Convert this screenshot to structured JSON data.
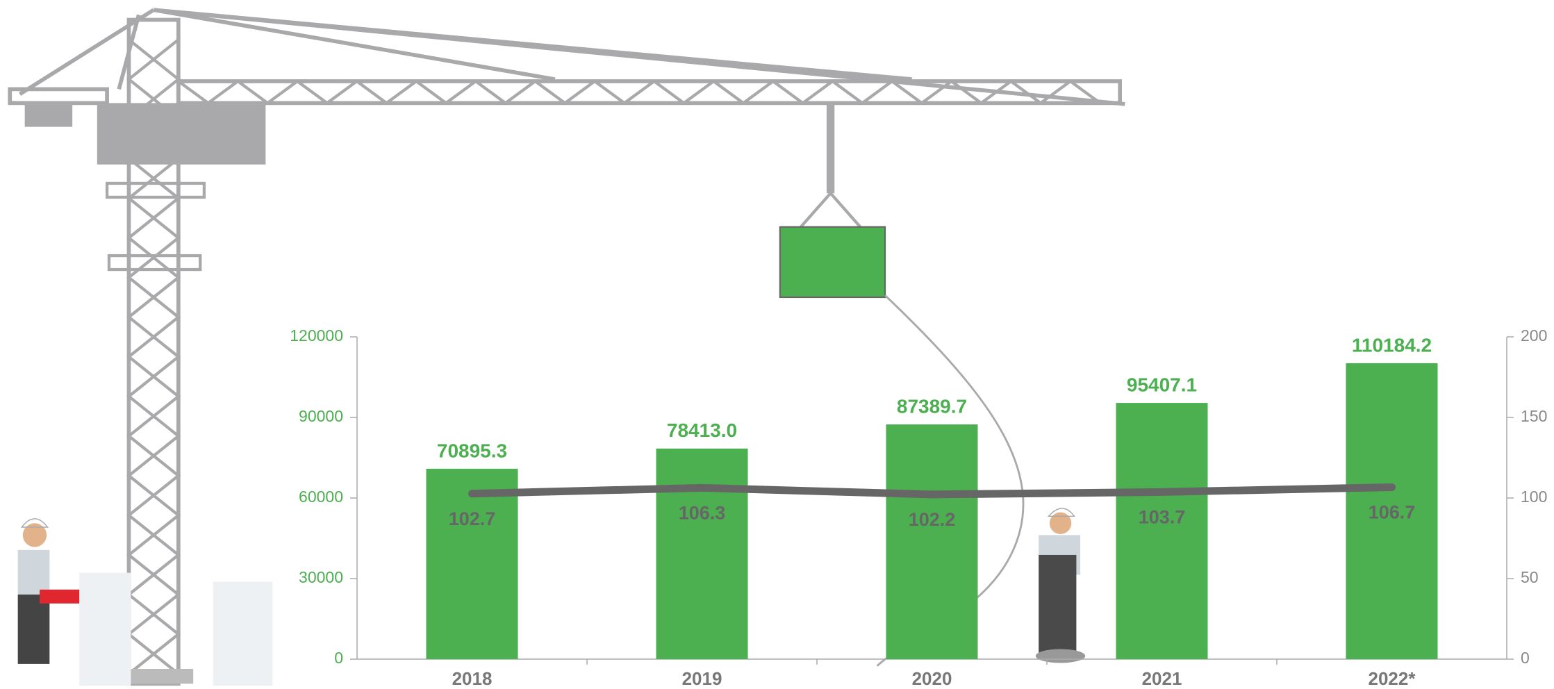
{
  "chart_data": {
    "type": "bar-line",
    "categories": [
      "2018",
      "2019",
      "2020",
      "2021",
      "2022*"
    ],
    "series": [
      {
        "type": "bar",
        "color": "#4caf50",
        "values": [
          70895.3,
          78413.0,
          87389.7,
          95407.1,
          110184.2
        ],
        "value_labels": [
          "70895.3",
          "78413.0",
          "87389.7",
          "95407.1",
          "110184.2"
        ]
      },
      {
        "type": "line",
        "axis": "y2",
        "color": "#666666",
        "values": [
          102.7,
          106.3,
          102.2,
          103.7,
          106.7
        ]
      }
    ],
    "ylim": [
      0,
      120000
    ],
    "yticks": [
      0,
      30000,
      60000,
      90000,
      120000
    ],
    "y2lim": [
      0,
      200
    ],
    "y2ticks": [
      0,
      50,
      100,
      150,
      200
    ]
  }
}
